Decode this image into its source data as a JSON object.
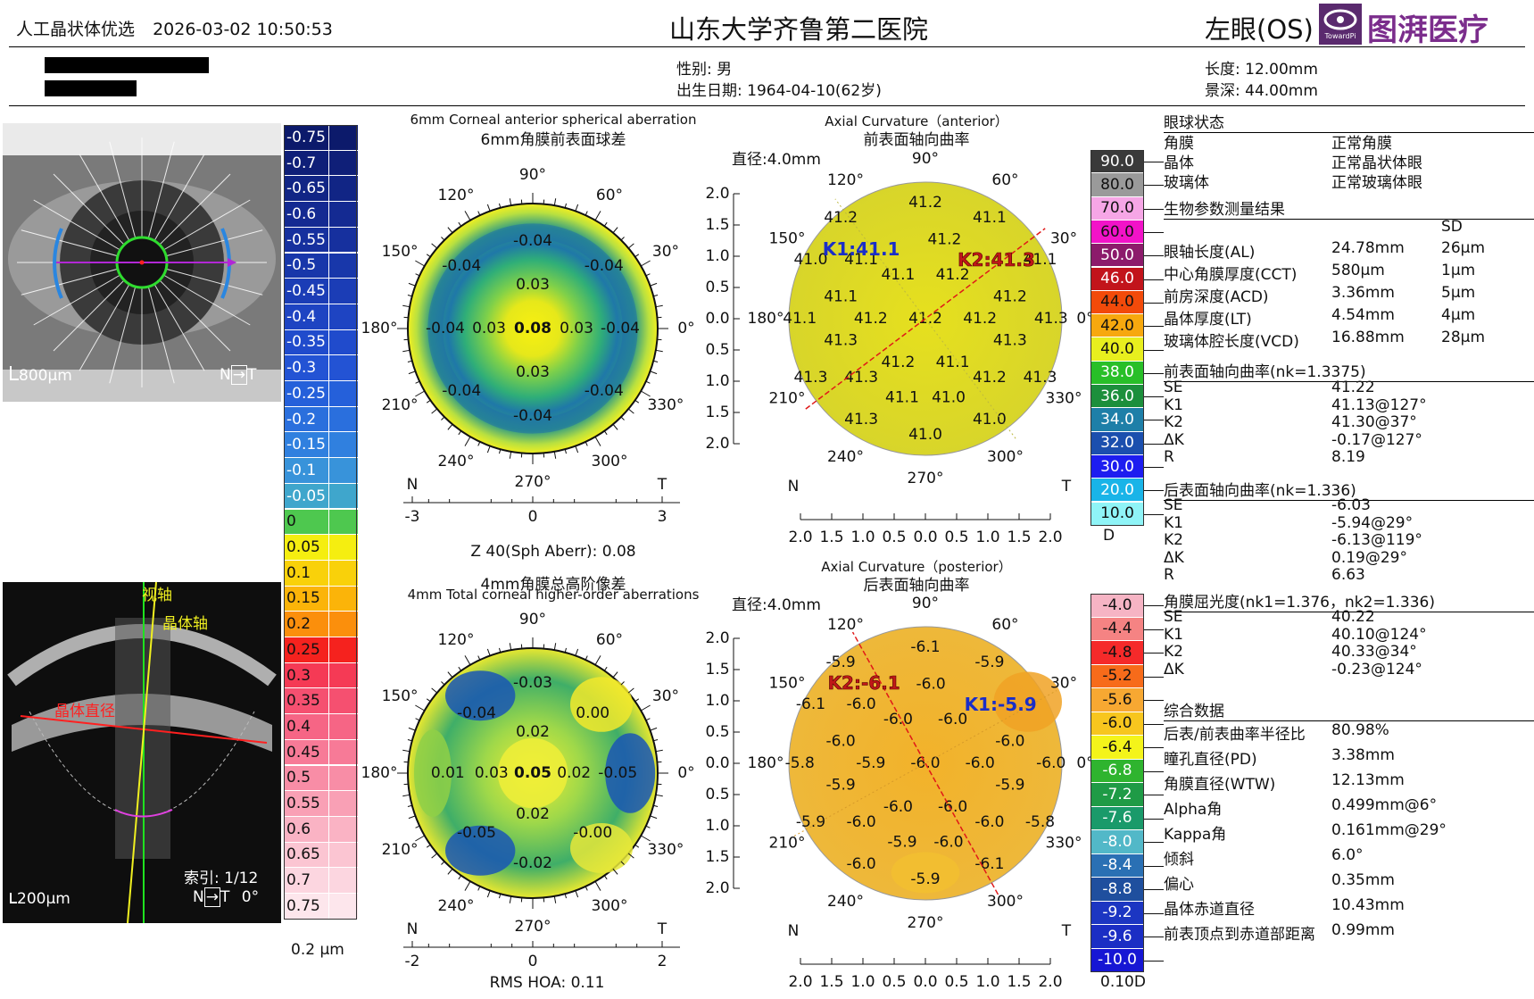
{
  "header": {
    "app_title": "人工晶状体优选",
    "datetime": "2026-03-02 10:50:53",
    "hospital": "山东大学齐鲁第二医院",
    "eye": "左眼(OS)",
    "logo_badge": "TowardPi",
    "logo_text": "图湃医疗",
    "sex": "性别: 男",
    "dob": "出生日期: 1964-04-10(62岁)",
    "length": "长度:  12.00mm",
    "depth": "景深:  44.00mm"
  },
  "images": {
    "eye_scale": "800μm",
    "oct_scale": "200μm",
    "nt_label": "N",
    "t_label": "T",
    "visual_axis": "视轴",
    "lens_axis": "晶体轴",
    "lens_diameter": "晶体直径",
    "index_label": "索引:  1/12",
    "angle_label": "0°"
  },
  "hoa_scale": {
    "labels": [
      "-0.75",
      "-0.7",
      "-0.65",
      "-0.6",
      "-0.55",
      "-0.5",
      "-0.45",
      "-0.4",
      "-0.35",
      "-0.3",
      "-0.25",
      "-0.2",
      "-0.15",
      "-0.1",
      "-0.05",
      "0",
      "0.05",
      "0.1",
      "0.15",
      "0.2",
      "0.25",
      "0.3",
      "0.35",
      "0.4",
      "0.45",
      "0.5",
      "0.55",
      "0.6",
      "0.65",
      "0.7",
      "0.75"
    ],
    "colors": [
      "#0c1a6b",
      "#0f1f78",
      "#112585",
      "#142a92",
      "#16309e",
      "#1837aa",
      "#1b3db6",
      "#1e44c2",
      "#204bcc",
      "#2353d4",
      "#2560da",
      "#2a6fdd",
      "#3080df",
      "#3893da",
      "#3fa6cc",
      "#4ec84f",
      "#f5ee10",
      "#f9d10a",
      "#fbb409",
      "#fb8f0c",
      "#f5221e",
      "#f53a55",
      "#f55070",
      "#f66585",
      "#f77a97",
      "#f88da6",
      "#f9a0b5",
      "#fab3c4",
      "#fbc5d2",
      "#fcd6e0",
      "#fde6ec"
    ],
    "unit": "0.2 μm"
  },
  "maps": {
    "sph": {
      "title_en": "6mm Corneal anterior spherical aberration",
      "title_cn": "6mm角膜前表面球差",
      "angles": [
        "90°",
        "60°",
        "30°",
        "0°",
        "330°",
        "300°",
        "270°",
        "240°",
        "210°",
        "180°",
        "150°",
        "120°"
      ],
      "values": [
        {
          "v": "-0.04",
          "x": 0.0,
          "y": -0.7
        },
        {
          "v": "-0.04",
          "x": -0.57,
          "y": -0.5
        },
        {
          "v": "-0.04",
          "x": 0.57,
          "y": -0.5
        },
        {
          "v": "0.03",
          "x": 0.0,
          "y": -0.35
        },
        {
          "v": "-0.04",
          "x": -0.7,
          "y": 0.0
        },
        {
          "v": "0.03",
          "x": -0.35,
          "y": 0.0
        },
        {
          "v": "0.08",
          "x": 0.0,
          "y": 0.0,
          "bold": true
        },
        {
          "v": "0.03",
          "x": 0.35,
          "y": 0.0
        },
        {
          "v": "-0.04",
          "x": 0.7,
          "y": 0.0
        },
        {
          "v": "0.03",
          "x": 0.0,
          "y": 0.35
        },
        {
          "v": "-0.04",
          "x": -0.57,
          "y": 0.5
        },
        {
          "v": "-0.04",
          "x": 0.57,
          "y": 0.5
        },
        {
          "v": "-0.04",
          "x": 0.0,
          "y": 0.7
        }
      ],
      "axis_left": "N",
      "axis_right": "T",
      "ticks": [
        "-3",
        "0",
        "3"
      ],
      "summary": "Z 40(Sph Aberr): 0.08"
    },
    "hoa": {
      "title_cn": "4mm角膜总高阶像差",
      "title_en": "4mm Total corneal higher-order aberrations",
      "angles": [
        "90°",
        "60°",
        "30°",
        "0°",
        "330°",
        "300°",
        "270°",
        "240°",
        "210°",
        "180°",
        "150°",
        "120°"
      ],
      "values": [
        {
          "v": "-0.03",
          "x": 0.0,
          "y": -0.72
        },
        {
          "v": "-0.04",
          "x": -0.45,
          "y": -0.48
        },
        {
          "v": "0.00",
          "x": 0.48,
          "y": -0.48
        },
        {
          "v": "0.02",
          "x": 0.0,
          "y": -0.33
        },
        {
          "v": "0.01",
          "x": -0.68,
          "y": 0.0
        },
        {
          "v": "0.03",
          "x": -0.33,
          "y": 0.0
        },
        {
          "v": "0.05",
          "x": 0.0,
          "y": 0.0,
          "bold": true
        },
        {
          "v": "0.02",
          "x": 0.33,
          "y": 0.0
        },
        {
          "v": "-0.05",
          "x": 0.68,
          "y": 0.0
        },
        {
          "v": "0.02",
          "x": 0.0,
          "y": 0.33
        },
        {
          "v": "-0.05",
          "x": -0.45,
          "y": 0.48
        },
        {
          "v": "-0.00",
          "x": 0.48,
          "y": 0.48
        },
        {
          "v": "-0.02",
          "x": 0.0,
          "y": 0.72
        }
      ],
      "axis_left": "N",
      "axis_right": "T",
      "ticks": [
        "-2",
        "0",
        "2"
      ],
      "summary": "RMS HOA: 0.11"
    },
    "ant": {
      "title_en": "Axial Curvature（anterior）",
      "title_cn": "前表面轴向曲率",
      "diameter": "直径:4.0mm",
      "angles": [
        "90°",
        "60°",
        "30°",
        "0°",
        "330°",
        "300°",
        "270°",
        "240°",
        "210°",
        "180°",
        "150°",
        "120°"
      ],
      "k1": "K1:41.1",
      "k2": "K2:41.3",
      "values": [
        {
          "v": "41.2",
          "x": 0.0,
          "y": -0.85
        },
        {
          "v": "41.2",
          "x": -0.62,
          "y": -0.74
        },
        {
          "v": "41.1",
          "x": 0.47,
          "y": -0.74
        },
        {
          "v": "41.2",
          "x": 0.14,
          "y": -0.58
        },
        {
          "v": "41.0",
          "x": -0.84,
          "y": -0.43
        },
        {
          "v": "41.1",
          "x": -0.47,
          "y": -0.43
        },
        {
          "v": "41.1",
          "x": -0.2,
          "y": -0.32
        },
        {
          "v": "41.2",
          "x": 0.2,
          "y": -0.32
        },
        {
          "v": "41.1",
          "x": 0.84,
          "y": -0.43
        },
        {
          "v": "41.1",
          "x": -0.62,
          "y": -0.16
        },
        {
          "v": "41.2",
          "x": 0.62,
          "y": -0.16
        },
        {
          "v": "41.1",
          "x": -0.92,
          "y": 0.0
        },
        {
          "v": "41.2",
          "x": -0.4,
          "y": 0.0
        },
        {
          "v": "41.2",
          "x": 0.0,
          "y": 0.0
        },
        {
          "v": "41.2",
          "x": 0.4,
          "y": 0.0
        },
        {
          "v": "41.3",
          "x": 0.92,
          "y": 0.0
        },
        {
          "v": "41.3",
          "x": -0.62,
          "y": 0.16
        },
        {
          "v": "41.3",
          "x": 0.62,
          "y": 0.16
        },
        {
          "v": "41.2",
          "x": -0.2,
          "y": 0.32
        },
        {
          "v": "41.1",
          "x": 0.2,
          "y": 0.32
        },
        {
          "v": "41.3",
          "x": -0.84,
          "y": 0.43
        },
        {
          "v": "41.3",
          "x": -0.47,
          "y": 0.43
        },
        {
          "v": "41.2",
          "x": 0.47,
          "y": 0.43
        },
        {
          "v": "41.3",
          "x": 0.84,
          "y": 0.43
        },
        {
          "v": "41.1",
          "x": -0.17,
          "y": 0.58
        },
        {
          "v": "41.0",
          "x": 0.17,
          "y": 0.58
        },
        {
          "v": "41.3",
          "x": -0.47,
          "y": 0.74
        },
        {
          "v": "41.0",
          "x": 0.47,
          "y": 0.74
        },
        {
          "v": "41.0",
          "x": 0.0,
          "y": 0.85
        }
      ],
      "axis_left": "N",
      "axis_right": "T",
      "radial_ticks": [
        "2.0",
        "1.5",
        "1.0",
        "0.5",
        "0.0",
        "0.5",
        "1.0",
        "1.5",
        "2.0"
      ]
    },
    "post": {
      "title_en": "Axial Curvature（posterior）",
      "title_cn": "后表面轴向曲率",
      "diameter": "直径:4.0mm",
      "angles": [
        "90°",
        "60°",
        "30°",
        "0°",
        "330°",
        "300°",
        "270°",
        "240°",
        "210°",
        "180°",
        "150°",
        "120°"
      ],
      "k1": "K1:-5.9",
      "k2": "K2:-6.1",
      "values": [
        {
          "v": "-6.1",
          "x": 0.0,
          "y": -0.85
        },
        {
          "v": "-5.9",
          "x": -0.62,
          "y": -0.74
        },
        {
          "v": "-5.9",
          "x": 0.47,
          "y": -0.74
        },
        {
          "v": "-6.0",
          "x": 0.04,
          "y": -0.58
        },
        {
          "v": "-6.1",
          "x": -0.84,
          "y": -0.43
        },
        {
          "v": "-6.0",
          "x": -0.47,
          "y": -0.43
        },
        {
          "v": "-6.0",
          "x": -0.2,
          "y": -0.32
        },
        {
          "v": "-6.0",
          "x": 0.2,
          "y": -0.32
        },
        {
          "v": "-6.0",
          "x": -0.62,
          "y": -0.16
        },
        {
          "v": "-6.0",
          "x": 0.62,
          "y": -0.16
        },
        {
          "v": "-5.8",
          "x": -0.92,
          "y": 0.0
        },
        {
          "v": "-5.9",
          "x": -0.4,
          "y": 0.0
        },
        {
          "v": "-6.0",
          "x": 0.0,
          "y": 0.0
        },
        {
          "v": "-6.0",
          "x": 0.4,
          "y": 0.0
        },
        {
          "v": "-6.0",
          "x": 0.92,
          "y": 0.0
        },
        {
          "v": "-5.9",
          "x": -0.62,
          "y": 0.16
        },
        {
          "v": "-5.9",
          "x": 0.62,
          "y": 0.16
        },
        {
          "v": "-6.0",
          "x": -0.2,
          "y": 0.32
        },
        {
          "v": "-6.0",
          "x": 0.2,
          "y": 0.32
        },
        {
          "v": "-5.9",
          "x": -0.84,
          "y": 0.43
        },
        {
          "v": "-6.0",
          "x": -0.47,
          "y": 0.43
        },
        {
          "v": "-6.0",
          "x": 0.47,
          "y": 0.43
        },
        {
          "v": "-5.8",
          "x": 0.84,
          "y": 0.43
        },
        {
          "v": "-5.9",
          "x": -0.17,
          "y": 0.58
        },
        {
          "v": "-6.0",
          "x": 0.17,
          "y": 0.58
        },
        {
          "v": "-6.0",
          "x": -0.47,
          "y": 0.74
        },
        {
          "v": "-6.1",
          "x": 0.47,
          "y": 0.74
        },
        {
          "v": "-5.9",
          "x": 0.0,
          "y": 0.85
        }
      ],
      "axis_left": "N",
      "axis_right": "T",
      "radial_ticks": [
        "2.0",
        "1.5",
        "1.0",
        "0.5",
        "0.0",
        "0.5",
        "1.0",
        "1.5",
        "2.0"
      ]
    }
  },
  "curv_scale_ant": {
    "labels": [
      "90.0",
      "80.0",
      "70.0",
      "60.0",
      "50.0",
      "46.0",
      "44.0",
      "42.0",
      "40.0",
      "38.0",
      "36.0",
      "34.0",
      "32.0",
      "30.0",
      "20.0",
      "10.0"
    ],
    "colors": [
      "#3a3a3a",
      "#9a9a9a",
      "#f6a6e6",
      "#f213c8",
      "#8c1b6b",
      "#c2141b",
      "#f24a0a",
      "#f7a80e",
      "#e8ef1e",
      "#28bf28",
      "#1c8f3c",
      "#1e7fa8",
      "#1b4fae",
      "#1d1df0",
      "#19b4e8",
      "#8ff4f7"
    ],
    "unit": "D"
  },
  "curv_scale_post": {
    "labels": [
      "-4.0",
      "-4.4",
      "-4.8",
      "-5.2",
      "-5.6",
      "-6.0",
      "-6.4",
      "-6.8",
      "-7.2",
      "-7.6",
      "-8.0",
      "-8.4",
      "-8.8",
      "-9.2",
      "-9.6",
      "-10.0"
    ],
    "colors": [
      "#f6b4c4",
      "#f58383",
      "#f52a2a",
      "#f76b1a",
      "#f7a832",
      "#f7c61e",
      "#f4f41a",
      "#2fb42f",
      "#1f9b46",
      "#1a9a6a",
      "#52b8c8",
      "#2a70b4",
      "#1f4f9e",
      "#1c36c2",
      "#1b2ec4",
      "#1616d4"
    ],
    "unit": "0.10D"
  },
  "right_panel": {
    "eye_status_title": "眼球状态",
    "eye_status": [
      [
        "角膜",
        "正常角膜"
      ],
      [
        "晶体",
        "正常晶状体眼"
      ],
      [
        "玻璃体",
        "正常玻璃体眼"
      ]
    ],
    "bio_title": "生物参数测量结果",
    "sd_label": "SD",
    "bio": [
      [
        "眼轴长度(AL)",
        "24.78mm",
        "26μm"
      ],
      [
        "中心角膜厚度(CCT)",
        "580μm",
        "1μm"
      ],
      [
        "前房深度(ACD)",
        "3.36mm",
        "5μm"
      ],
      [
        "晶体厚度(LT)",
        "4.54mm",
        "4μm"
      ],
      [
        "玻璃体腔长度(VCD)",
        "16.88mm",
        "28μm"
      ]
    ],
    "ant_title": "前表面轴向曲率(nk=1.3375)",
    "ant": [
      [
        "SE",
        "41.22"
      ],
      [
        "K1",
        "41.13@127°"
      ],
      [
        "K2",
        "41.30@37°"
      ],
      [
        "ΔK",
        "-0.17@127°"
      ],
      [
        "R",
        "8.19"
      ]
    ],
    "post_title": "后表面轴向曲率(nk=1.336)",
    "post": [
      [
        "SE",
        "-6.03"
      ],
      [
        "K1",
        "-5.94@29°"
      ],
      [
        "K2",
        "-6.13@119°"
      ],
      [
        "ΔK",
        "0.19@29°"
      ],
      [
        "R",
        "6.63"
      ]
    ],
    "ref_title": "角膜屈光度(nk1=1.376，nk2=1.336)",
    "ref": [
      [
        "SE",
        "40.22"
      ],
      [
        "K1",
        "40.10@124°"
      ],
      [
        "K2",
        "40.33@34°"
      ],
      [
        "ΔK",
        "-0.23@124°"
      ]
    ],
    "comp_title": "综合数据",
    "comp": [
      [
        "后表/前表曲率半径比",
        "80.98%"
      ],
      [
        "瞳孔直径(PD)",
        "3.38mm"
      ],
      [
        "角膜直径(WTW)",
        "12.13mm"
      ],
      [
        "Alpha角",
        "0.499mm@6°"
      ],
      [
        "Kappa角",
        "0.161mm@29°"
      ],
      [
        "倾斜",
        "6.0°"
      ],
      [
        "偏心",
        "0.35mm"
      ],
      [
        "晶体赤道直径",
        "10.43mm"
      ],
      [
        "前表顶点到赤道部距离",
        "0.99mm"
      ]
    ]
  }
}
